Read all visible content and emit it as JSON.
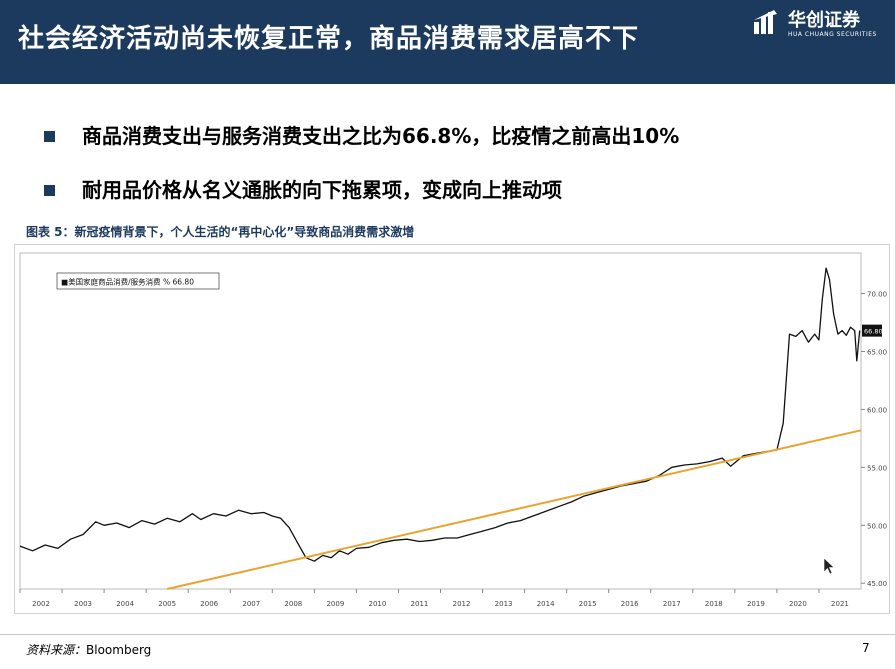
{
  "header": {
    "title": "社会经济活动尚未恢复正常，商品消费需求居高不下",
    "logo_cn": "华创证券",
    "logo_en": "HUA CHUANG SECURITIES",
    "bg_color": "#1c3a5e"
  },
  "bullets": [
    {
      "text": "商品消费支出与服务消费支出之比为66.8%，比疫情之前高出10%"
    },
    {
      "text": "耐用品价格从名义通胀的向下拖累项，变成向上推动项"
    }
  ],
  "chart_caption": "图表 5：新冠疫情背景下，个人生活的“再中心化”导致商品消费需求激增",
  "chart_data": {
    "type": "line",
    "legend": "■美国家庭商品消费/服务消费 % 66.80",
    "x_ticks": [
      "2002",
      "2003",
      "2004",
      "2005",
      "2006",
      "2007",
      "2008",
      "2009",
      "2010",
      "2011",
      "2012",
      "2013",
      "2014",
      "2015",
      "2016",
      "2017",
      "2018",
      "2019",
      "2020",
      "2021"
    ],
    "y_ticks": [
      45,
      50,
      55,
      60,
      65,
      70
    ],
    "y_tick_labels": [
      "45.00",
      "50.00",
      "55.00",
      "60.00",
      "65.00",
      "70.00"
    ],
    "ylim": [
      44.5,
      73.5
    ],
    "xlim": [
      2002.0,
      2022.0
    ],
    "last_value_label": "66.80",
    "series": [
      {
        "color": "#111111",
        "points": [
          [
            2002.0,
            48.2
          ],
          [
            2002.3,
            47.8
          ],
          [
            2002.6,
            48.3
          ],
          [
            2002.9,
            48.0
          ],
          [
            2003.2,
            48.8
          ],
          [
            2003.5,
            49.2
          ],
          [
            2003.8,
            50.3
          ],
          [
            2004.0,
            50.0
          ],
          [
            2004.3,
            50.2
          ],
          [
            2004.6,
            49.8
          ],
          [
            2004.9,
            50.4
          ],
          [
            2005.2,
            50.1
          ],
          [
            2005.5,
            50.6
          ],
          [
            2005.8,
            50.3
          ],
          [
            2006.1,
            51.0
          ],
          [
            2006.3,
            50.5
          ],
          [
            2006.6,
            51.0
          ],
          [
            2006.9,
            50.8
          ],
          [
            2007.2,
            51.3
          ],
          [
            2007.5,
            51.0
          ],
          [
            2007.8,
            51.1
          ],
          [
            2008.0,
            50.8
          ],
          [
            2008.2,
            50.6
          ],
          [
            2008.4,
            49.8
          ],
          [
            2008.6,
            48.5
          ],
          [
            2008.8,
            47.2
          ],
          [
            2009.0,
            46.9
          ],
          [
            2009.2,
            47.4
          ],
          [
            2009.4,
            47.2
          ],
          [
            2009.6,
            47.8
          ],
          [
            2009.8,
            47.5
          ],
          [
            2010.0,
            48.0
          ],
          [
            2010.3,
            48.1
          ],
          [
            2010.6,
            48.5
          ],
          [
            2010.9,
            48.7
          ],
          [
            2011.2,
            48.8
          ],
          [
            2011.5,
            48.6
          ],
          [
            2011.8,
            48.7
          ],
          [
            2012.1,
            48.9
          ],
          [
            2012.4,
            48.9
          ],
          [
            2012.7,
            49.2
          ],
          [
            2013.0,
            49.5
          ],
          [
            2013.3,
            49.8
          ],
          [
            2013.6,
            50.2
          ],
          [
            2013.9,
            50.4
          ],
          [
            2014.2,
            50.8
          ],
          [
            2014.5,
            51.2
          ],
          [
            2014.8,
            51.6
          ],
          [
            2015.1,
            52.0
          ],
          [
            2015.4,
            52.5
          ],
          [
            2015.7,
            52.8
          ],
          [
            2016.0,
            53.1
          ],
          [
            2016.3,
            53.4
          ],
          [
            2016.6,
            53.6
          ],
          [
            2016.9,
            53.8
          ],
          [
            2017.2,
            54.3
          ],
          [
            2017.5,
            55.0
          ],
          [
            2017.8,
            55.2
          ],
          [
            2018.1,
            55.3
          ],
          [
            2018.4,
            55.5
          ],
          [
            2018.7,
            55.8
          ],
          [
            2018.9,
            55.1
          ],
          [
            2019.2,
            56.0
          ],
          [
            2019.5,
            56.2
          ],
          [
            2019.8,
            56.4
          ],
          [
            2020.0,
            56.5
          ],
          [
            2020.15,
            58.8
          ],
          [
            2020.3,
            66.5
          ],
          [
            2020.45,
            66.3
          ],
          [
            2020.6,
            66.8
          ],
          [
            2020.75,
            65.8
          ],
          [
            2020.9,
            66.5
          ],
          [
            2021.0,
            66.0
          ],
          [
            2021.08,
            69.5
          ],
          [
            2021.17,
            72.2
          ],
          [
            2021.25,
            71.2
          ],
          [
            2021.35,
            68.2
          ],
          [
            2021.45,
            66.5
          ],
          [
            2021.55,
            66.8
          ],
          [
            2021.65,
            66.4
          ],
          [
            2021.75,
            67.1
          ],
          [
            2021.85,
            66.8
          ],
          [
            2021.9,
            64.2
          ],
          [
            2021.97,
            66.8
          ]
        ]
      },
      {
        "color": "#e8a430",
        "points": [
          [
            2005.5,
            44.5
          ],
          [
            2022.0,
            58.2
          ]
        ]
      }
    ]
  },
  "source": {
    "label": "资料来源：",
    "value": "Bloomberg"
  },
  "page_number": "7"
}
